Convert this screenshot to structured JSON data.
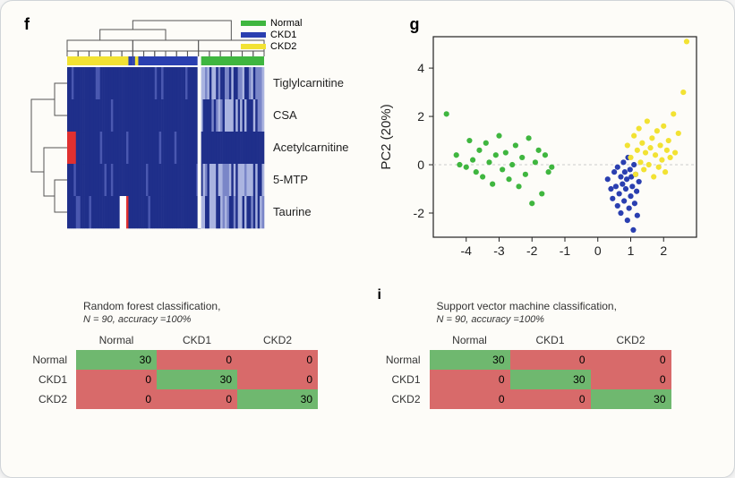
{
  "panel_f": {
    "letter": "f",
    "legend": [
      {
        "label": "Normal",
        "color": "#3fb63f"
      },
      {
        "label": "CKD1",
        "color": "#2a3fb0"
      },
      {
        "label": "CKD2",
        "color": "#f2e233"
      }
    ],
    "row_labels": [
      "Tiglylcarnitine",
      "CSA",
      "Acetylcarnitine",
      "5-MTP",
      "Taurine"
    ],
    "annot_colors": [
      "#f2e233",
      "#2a3fb0",
      "#3fb63f"
    ],
    "heatmap_base": "#1f2f8a",
    "heatmap_stripe": "#aab4e0",
    "heatmap_red": "#e03030",
    "heatmap_white": "#ffffff",
    "dendro_color": "#555"
  },
  "panel_g": {
    "letter": "g",
    "ylabel": "PC2 (20%)",
    "xlim": [
      -5,
      3
    ],
    "ylim": [
      -3,
      5.3
    ],
    "xticks": [
      -4,
      -3,
      -2,
      -1,
      0,
      1,
      2
    ],
    "yticks": [
      -2,
      0,
      2,
      4
    ],
    "axis_color": "#222",
    "grid_line_color": "#cccccc",
    "point_r": 3.1,
    "groups": {
      "normal": {
        "color": "#3fb63f",
        "points": [
          [
            -4.6,
            2.1
          ],
          [
            -4.3,
            0.4
          ],
          [
            -4.2,
            0.0
          ],
          [
            -4.0,
            -0.1
          ],
          [
            -3.9,
            1.0
          ],
          [
            -3.8,
            0.2
          ],
          [
            -3.7,
            -0.3
          ],
          [
            -3.6,
            0.6
          ],
          [
            -3.5,
            -0.5
          ],
          [
            -3.4,
            0.9
          ],
          [
            -3.3,
            0.1
          ],
          [
            -3.2,
            -0.8
          ],
          [
            -3.1,
            0.4
          ],
          [
            -3.0,
            1.2
          ],
          [
            -2.9,
            -0.2
          ],
          [
            -2.8,
            0.5
          ],
          [
            -2.7,
            -0.6
          ],
          [
            -2.6,
            0.0
          ],
          [
            -2.5,
            0.8
          ],
          [
            -2.4,
            -0.9
          ],
          [
            -2.3,
            0.3
          ],
          [
            -2.2,
            -0.4
          ],
          [
            -2.1,
            1.1
          ],
          [
            -2.0,
            -1.6
          ],
          [
            -1.9,
            0.1
          ],
          [
            -1.8,
            0.6
          ],
          [
            -1.6,
            0.4
          ],
          [
            -1.5,
            -0.3
          ],
          [
            -1.7,
            -1.2
          ],
          [
            -1.4,
            -0.1
          ]
        ]
      },
      "ckd1": {
        "color": "#2a3fb0",
        "points": [
          [
            0.3,
            -0.6
          ],
          [
            0.4,
            -1.0
          ],
          [
            0.45,
            -1.4
          ],
          [
            0.5,
            -0.3
          ],
          [
            0.55,
            -0.9
          ],
          [
            0.6,
            -1.7
          ],
          [
            0.6,
            -0.1
          ],
          [
            0.65,
            -1.2
          ],
          [
            0.7,
            -0.5
          ],
          [
            0.7,
            -2.0
          ],
          [
            0.75,
            -0.8
          ],
          [
            0.78,
            0.1
          ],
          [
            0.8,
            -1.5
          ],
          [
            0.82,
            -0.3
          ],
          [
            0.85,
            -1.0
          ],
          [
            0.88,
            -0.6
          ],
          [
            0.9,
            -2.3
          ],
          [
            0.92,
            0.3
          ],
          [
            0.95,
            -1.8
          ],
          [
            0.98,
            -0.2
          ],
          [
            1.0,
            -1.3
          ],
          [
            1.02,
            -0.5
          ],
          [
            1.05,
            -0.9
          ],
          [
            1.08,
            -2.7
          ],
          [
            1.1,
            0.0
          ],
          [
            1.12,
            -1.6
          ],
          [
            1.15,
            -0.4
          ],
          [
            1.18,
            -1.1
          ],
          [
            1.2,
            -2.1
          ],
          [
            1.25,
            -0.7
          ]
        ]
      },
      "ckd2": {
        "color": "#f2e233",
        "points": [
          [
            0.9,
            0.8
          ],
          [
            1.0,
            0.3
          ],
          [
            1.1,
            1.2
          ],
          [
            1.15,
            -0.4
          ],
          [
            1.2,
            0.6
          ],
          [
            1.25,
            1.5
          ],
          [
            1.3,
            0.1
          ],
          [
            1.35,
            0.9
          ],
          [
            1.4,
            -0.2
          ],
          [
            1.45,
            0.5
          ],
          [
            1.5,
            1.8
          ],
          [
            1.55,
            0.0
          ],
          [
            1.6,
            0.7
          ],
          [
            1.65,
            1.1
          ],
          [
            1.7,
            -0.5
          ],
          [
            1.75,
            0.4
          ],
          [
            1.8,
            1.4
          ],
          [
            1.85,
            -0.1
          ],
          [
            1.9,
            0.8
          ],
          [
            1.95,
            0.2
          ],
          [
            2.0,
            1.6
          ],
          [
            2.05,
            -0.3
          ],
          [
            2.1,
            0.6
          ],
          [
            2.15,
            1.0
          ],
          [
            2.2,
            0.3
          ],
          [
            2.3,
            2.1
          ],
          [
            2.35,
            0.5
          ],
          [
            2.45,
            1.3
          ],
          [
            2.6,
            3.0
          ],
          [
            2.7,
            5.1
          ]
        ]
      }
    }
  },
  "panel_h": {
    "title": "Random forest classification,",
    "subtitle_prefix": "N",
    "subtitle_rest": " = 90, accuracy =100%",
    "col_headers": [
      "Normal",
      "CKD1",
      "CKD2"
    ],
    "row_headers": [
      "Normal",
      "CKD1",
      "CKD2"
    ],
    "matrix": [
      [
        30,
        0,
        0
      ],
      [
        0,
        30,
        0
      ],
      [
        0,
        0,
        30
      ]
    ],
    "diag_color": "#6fb86f",
    "off_color": "#d86a6a"
  },
  "panel_i": {
    "letter": "i",
    "title": "Support vector machine classification,",
    "subtitle_prefix": "N",
    "subtitle_rest": " = 90, accuracy =100%",
    "col_headers": [
      "Normal",
      "CKD1",
      "CKD2"
    ],
    "row_headers": [
      "Normal",
      "CKD1",
      "CKD2"
    ],
    "matrix": [
      [
        30,
        0,
        0
      ],
      [
        0,
        30,
        0
      ],
      [
        0,
        0,
        30
      ]
    ],
    "diag_color": "#6fb86f",
    "off_color": "#d86a6a"
  }
}
